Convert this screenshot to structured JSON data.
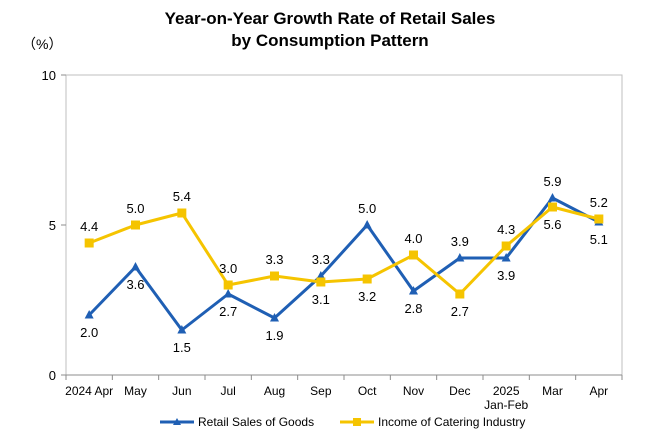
{
  "chart_data": {
    "type": "line",
    "title": "Year-on-Year Growth Rate of Retail Sales",
    "subtitle": "by Consumption Pattern",
    "unit_label": "（%）",
    "ylim": [
      0,
      10
    ],
    "yticks": [
      "0",
      "5",
      "10"
    ],
    "categories": [
      "2024 Apr",
      "May",
      "Jun",
      "Jul",
      "Aug",
      "Sep",
      "Oct",
      "Nov",
      "Dec",
      "2025",
      "Mar",
      "Apr"
    ],
    "category_sublabels": [
      "",
      "",
      "",
      "",
      "",
      "",
      "",
      "",
      "",
      "Jan-Feb",
      "",
      ""
    ],
    "series": [
      {
        "name": "Retail Sales of Goods",
        "color": "#1f5fb4",
        "marker": "triangle",
        "values": [
          2.0,
          3.6,
          1.5,
          2.7,
          1.9,
          3.3,
          5.0,
          2.8,
          3.9,
          3.9,
          5.9,
          5.1
        ],
        "labels": [
          "2.0",
          "3.6",
          "1.5",
          "2.7",
          "1.9",
          "3.3",
          "5.0",
          "2.8",
          "3.9",
          "3.9",
          "5.9",
          "5.1"
        ]
      },
      {
        "name": "Income of Catering Industry",
        "color": "#f5c400",
        "marker": "square",
        "values": [
          4.4,
          5.0,
          5.4,
          3.0,
          3.3,
          3.1,
          3.2,
          4.0,
          2.7,
          4.3,
          5.6,
          5.2
        ],
        "labels": [
          "4.4",
          "5.0",
          "5.4",
          "3.0",
          "3.3",
          "3.1",
          "3.2",
          "4.0",
          "2.7",
          "4.3",
          "5.6",
          "5.2"
        ]
      }
    ],
    "legend_position": "bottom",
    "grid": false
  }
}
